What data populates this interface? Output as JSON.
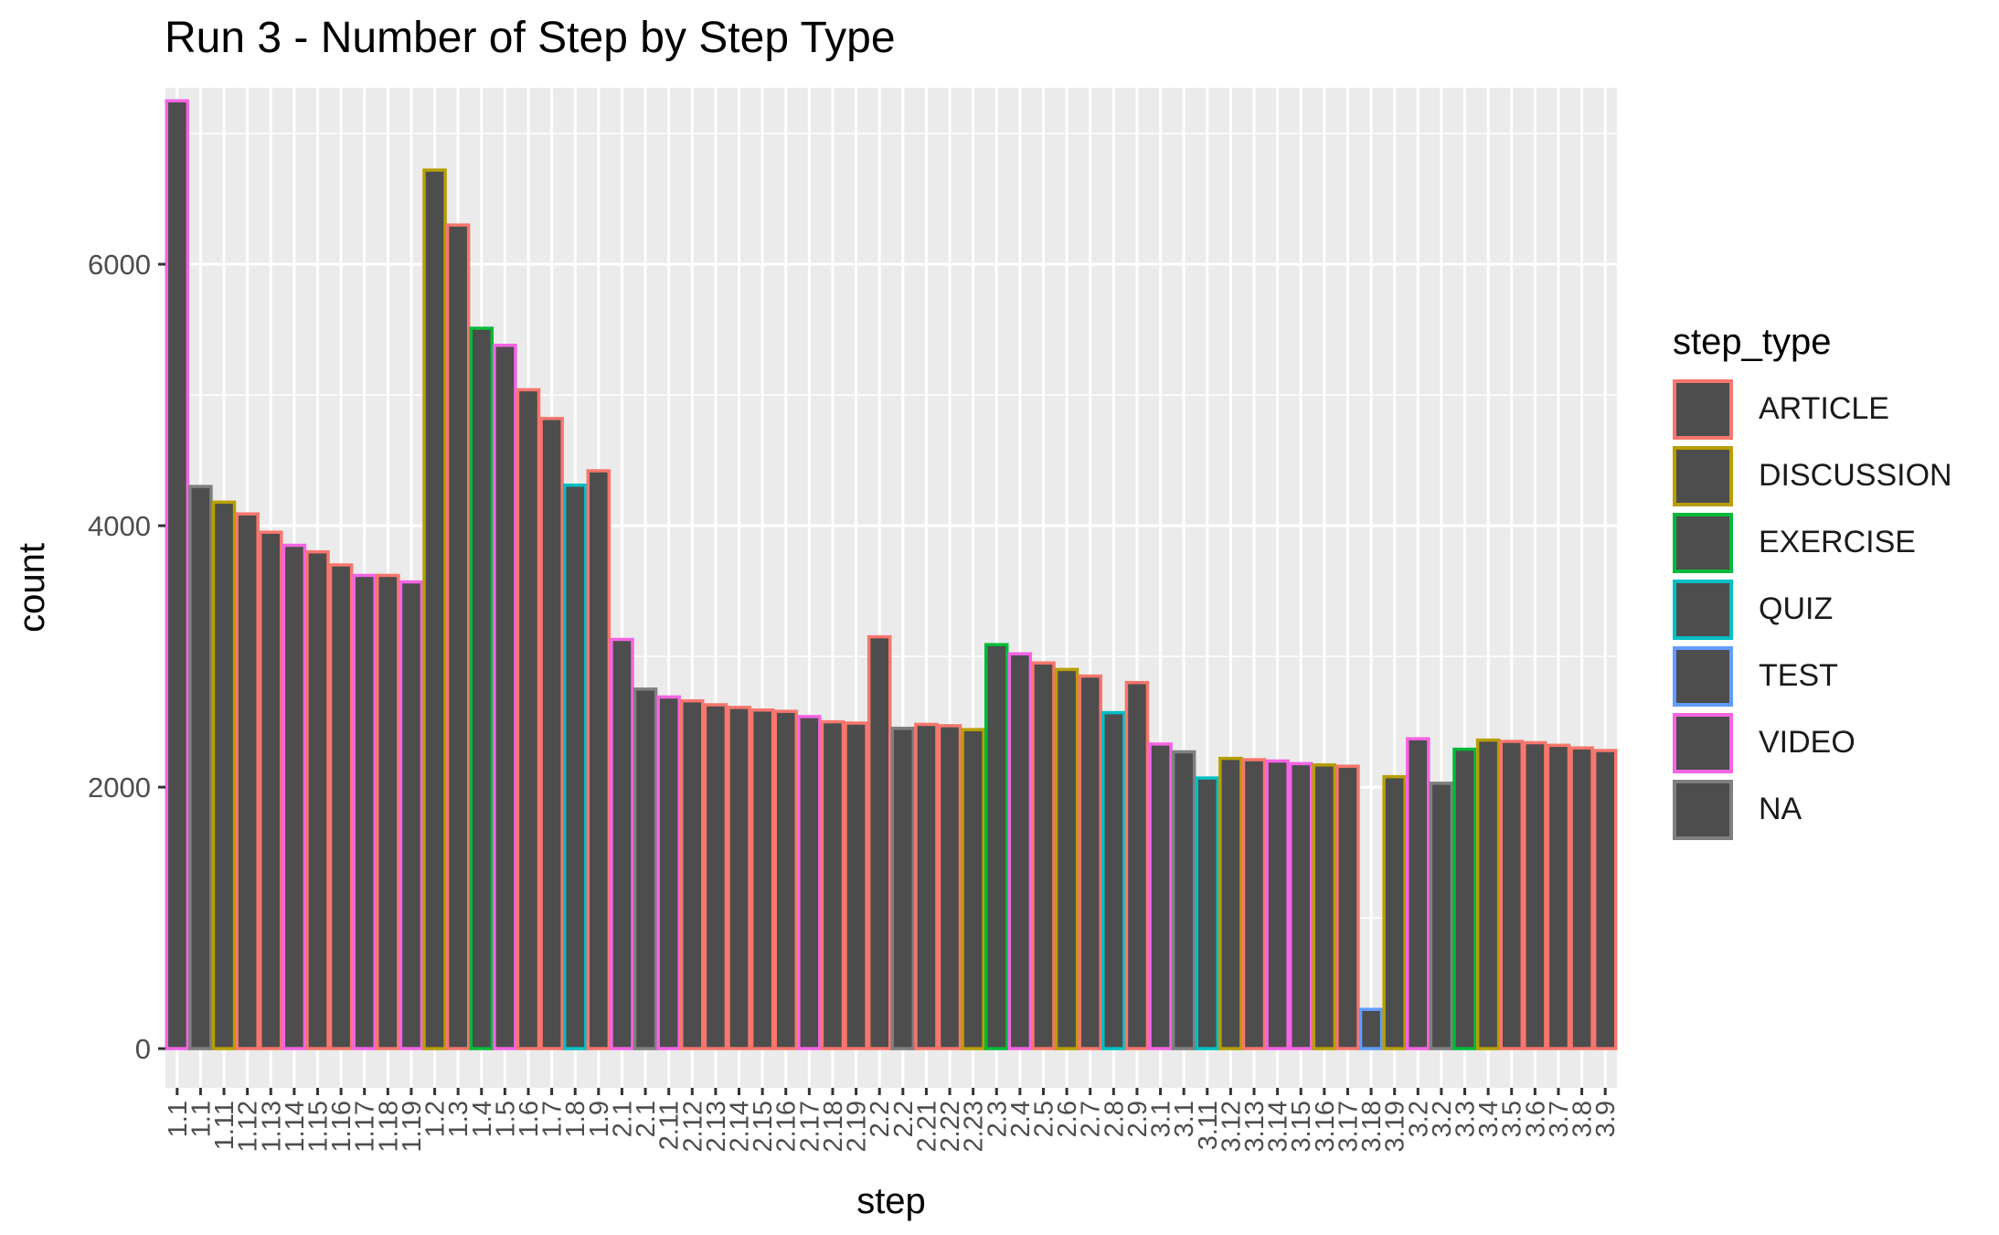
{
  "chart_data": {
    "type": "bar",
    "title": "Run 3 - Number of Step by Step Type",
    "xlabel": "step",
    "ylabel": "count",
    "ylim": [
      -300,
      7350
    ],
    "yticks": [
      0,
      2000,
      4000,
      6000
    ],
    "grid": true,
    "bar_fill": "#4d4d4d",
    "panel_background": "#ebebeb",
    "legend": {
      "title": "step_type",
      "position": "right",
      "entries": [
        {
          "label": "ARTICLE",
          "color": "#F8766D"
        },
        {
          "label": "DISCUSSION",
          "color": "#B79F00"
        },
        {
          "label": "EXERCISE",
          "color": "#00BA38"
        },
        {
          "label": "QUIZ",
          "color": "#00BFC4"
        },
        {
          "label": "TEST",
          "color": "#619CFF"
        },
        {
          "label": "VIDEO",
          "color": "#F564E3"
        },
        {
          "label": "NA",
          "color": "#7f7f7f"
        }
      ]
    },
    "categories": [
      "1.1",
      "1.1",
      "1.11",
      "1.12",
      "1.13",
      "1.14",
      "1.15",
      "1.16",
      "1.17",
      "1.18",
      "1.19",
      "1.2",
      "1.3",
      "1.4",
      "1.5",
      "1.6",
      "1.7",
      "1.8",
      "1.9",
      "2.1",
      "2.1",
      "2.11",
      "2.12",
      "2.13",
      "2.14",
      "2.15",
      "2.16",
      "2.17",
      "2.18",
      "2.19",
      "2.2",
      "2.2",
      "2.21",
      "2.22",
      "2.23",
      "2.3",
      "2.4",
      "2.5",
      "2.6",
      "2.7",
      "2.8",
      "2.9",
      "3.1",
      "3.1",
      "3.11",
      "3.12",
      "3.13",
      "3.14",
      "3.15",
      "3.16",
      "3.17",
      "3.18",
      "3.19",
      "3.2",
      "3.2",
      "3.3",
      "3.4",
      "3.5",
      "3.6",
      "3.7",
      "3.8",
      "3.9"
    ],
    "values": [
      7250,
      4300,
      4180,
      4090,
      3950,
      3850,
      3800,
      3700,
      3620,
      3620,
      3570,
      6720,
      6300,
      5510,
      5380,
      5040,
      4820,
      4310,
      4420,
      3130,
      2750,
      2690,
      2660,
      2630,
      2610,
      2590,
      2580,
      2540,
      2500,
      2490,
      3150,
      2450,
      2480,
      2470,
      2440,
      3090,
      3020,
      2950,
      2900,
      2850,
      2570,
      2800,
      2330,
      2270,
      2070,
      2220,
      2210,
      2200,
      2180,
      2170,
      2160,
      300,
      2080,
      2370,
      2030,
      2290,
      2360,
      2350,
      2340,
      2320,
      2300,
      2280
    ],
    "step_types": [
      "VIDEO",
      "NA",
      "DISCUSSION",
      "ARTICLE",
      "ARTICLE",
      "VIDEO",
      "ARTICLE",
      "ARTICLE",
      "VIDEO",
      "ARTICLE",
      "VIDEO",
      "DISCUSSION",
      "ARTICLE",
      "EXERCISE",
      "VIDEO",
      "ARTICLE",
      "ARTICLE",
      "QUIZ",
      "ARTICLE",
      "VIDEO",
      "NA",
      "VIDEO",
      "ARTICLE",
      "ARTICLE",
      "ARTICLE",
      "ARTICLE",
      "ARTICLE",
      "VIDEO",
      "ARTICLE",
      "ARTICLE",
      "ARTICLE",
      "NA",
      "ARTICLE",
      "ARTICLE",
      "DISCUSSION",
      "EXERCISE",
      "VIDEO",
      "ARTICLE",
      "DISCUSSION",
      "ARTICLE",
      "QUIZ",
      "ARTICLE",
      "VIDEO",
      "NA",
      "QUIZ",
      "DISCUSSION",
      "ARTICLE",
      "VIDEO",
      "VIDEO",
      "DISCUSSION",
      "ARTICLE",
      "TEST",
      "DISCUSSION",
      "VIDEO",
      "NA",
      "EXERCISE",
      "DISCUSSION",
      "ARTICLE",
      "ARTICLE",
      "ARTICLE",
      "ARTICLE",
      "ARTICLE"
    ]
  }
}
